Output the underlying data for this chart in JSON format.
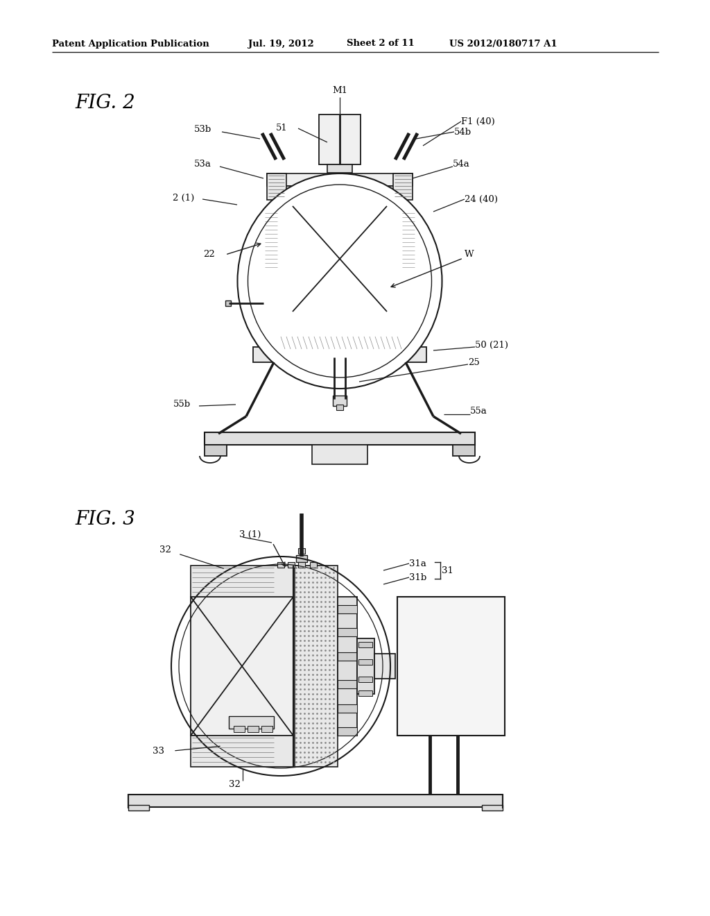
{
  "background_color": "#ffffff",
  "header_text": "Patent Application Publication",
  "header_date": "Jul. 19, 2012",
  "header_sheet": "Sheet 2 of 11",
  "header_patent": "US 2012/0180717 A1",
  "fig2_label": "FIG. 2",
  "fig3_label": "FIG. 3",
  "line_color": "#1a1a1a",
  "text_color": "#000000"
}
